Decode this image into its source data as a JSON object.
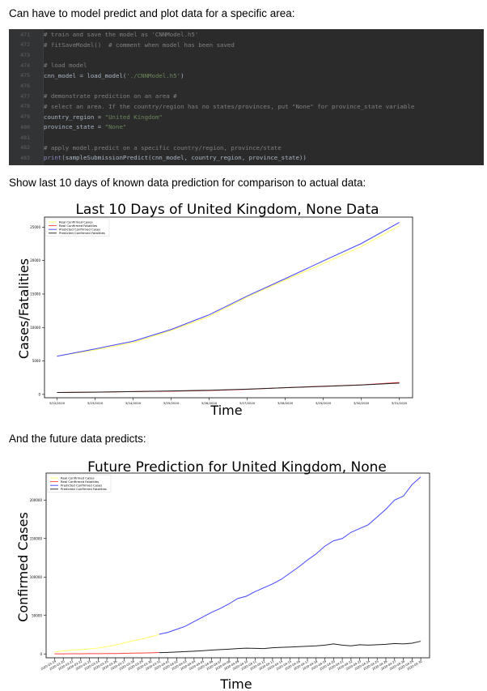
{
  "paragraphs": {
    "intro": "Can have to model predict and plot data for a specific area:",
    "last10": "Show last 10 days of known data prediction for comparison to actual data:",
    "future": "And the future data predicts:"
  },
  "code": {
    "lines": [
      {
        "num": "471",
        "parts": [
          {
            "t": "# train and save the model as 'CNNModel.h5'",
            "c": "cmt"
          }
        ]
      },
      {
        "num": "472",
        "parts": [
          {
            "t": "# fitSaveModel()  # comment when model has been saved",
            "c": "cmt"
          }
        ]
      },
      {
        "num": "473",
        "parts": []
      },
      {
        "num": "474",
        "parts": [
          {
            "t": "# load model",
            "c": "cmt"
          }
        ]
      },
      {
        "num": "475",
        "parts": [
          {
            "t": "cnn_model = load_model(",
            "c": ""
          },
          {
            "t": "'./CNNModel.h5'",
            "c": "str"
          },
          {
            "t": ")",
            "c": ""
          }
        ]
      },
      {
        "num": "476",
        "parts": []
      },
      {
        "num": "477",
        "parts": [
          {
            "t": "# demonstrate prediction on an area #",
            "c": "cmt"
          }
        ]
      },
      {
        "num": "478",
        "parts": [
          {
            "t": "# select an area. If the country/region has no states/provinces, put \"None\" for province_state variable",
            "c": "cmt"
          }
        ]
      },
      {
        "num": "479",
        "parts": [
          {
            "t": "country_region = ",
            "c": ""
          },
          {
            "t": "\"United Kingdom\"",
            "c": "str"
          }
        ]
      },
      {
        "num": "480",
        "parts": [
          {
            "t": "province_state = ",
            "c": ""
          },
          {
            "t": "\"None\"",
            "c": "str"
          }
        ]
      },
      {
        "num": "481",
        "parts": []
      },
      {
        "num": "482",
        "parts": [
          {
            "t": "# apply model.predict on a specific country/region, province/state",
            "c": "cmt"
          }
        ]
      },
      {
        "num": "483",
        "parts": [
          {
            "t": "print",
            "c": "fn"
          },
          {
            "t": "(sampleSubmissionPredict(cnn_model, country_region, province_state))",
            "c": ""
          }
        ]
      }
    ]
  },
  "chart_data": [
    {
      "type": "line",
      "title": "Last 10 Days of United Kingdom, None Data",
      "xlabel": "Time",
      "ylabel": "Cases/Fatalities",
      "categories": [
        "3/22/2020",
        "3/23/2020",
        "3/24/2020",
        "3/25/2020",
        "3/26/2020",
        "3/27/2020",
        "3/28/2020",
        "3/29/2020",
        "3/30/2020",
        "3/31/2020"
      ],
      "ylim": [
        -500,
        26500
      ],
      "yticks": [
        0,
        5000,
        10000,
        15000,
        20000,
        25000
      ],
      "legend": "upper-left",
      "series": [
        {
          "name": "Real Confirmed Cases",
          "color": "#ffff66",
          "values": [
            5700,
            6650,
            7750,
            9550,
            11650,
            14550,
            17100,
            19550,
            22100,
            25200
          ]
        },
        {
          "name": "Real Confirmed Fatalities",
          "color": "#ff4040",
          "values": [
            280,
            340,
            430,
            470,
            580,
            760,
            1020,
            1230,
            1420,
            1790
          ]
        },
        {
          "name": "Predicted Confirmed Cases",
          "color": "#4444ff",
          "values": [
            5700,
            6800,
            7950,
            9700,
            11900,
            14700,
            17300,
            19950,
            22550,
            25700
          ]
        },
        {
          "name": "Predicted Confirmed Fatalities",
          "color": "#202020",
          "values": [
            280,
            330,
            420,
            520,
            620,
            780,
            1000,
            1200,
            1400,
            1700
          ]
        }
      ]
    },
    {
      "type": "line",
      "title": "Future Prediction for United Kingdom, None",
      "xlabel": "Time",
      "ylabel": "Confirmed Cases",
      "categories": [
        "2020-03-19",
        "2020-03-20",
        "2020-03-21",
        "2020-03-22",
        "2020-03-23",
        "2020-03-24",
        "2020-03-25",
        "2020-03-26",
        "2020-03-27",
        "2020-03-28",
        "2020-03-29",
        "2020-03-30",
        "2020-03-31",
        "2020-04-01",
        "2020-04-02",
        "2020-04-03",
        "2020-04-04",
        "2020-04-05",
        "2020-04-06",
        "2020-04-07",
        "2020-04-08",
        "2020-04-09",
        "2020-04-10",
        "2020-04-11",
        "2020-04-12",
        "2020-04-13",
        "2020-04-14",
        "2020-04-15",
        "2020-04-16",
        "2020-04-17",
        "2020-04-18",
        "2020-04-19",
        "2020-04-20",
        "2020-04-21",
        "2020-04-22",
        "2020-04-23",
        "2020-04-24",
        "2020-04-25",
        "2020-04-26",
        "2020-04-27",
        "2020-04-28",
        "2020-04-29",
        "2020-04-30"
      ],
      "ylim": [
        -5000,
        235000
      ],
      "yticks": [
        0,
        50000,
        100000,
        150000,
        200000
      ],
      "legend": "upper-left",
      "series": [
        {
          "name": "Real Confirmed Cases",
          "color": "#ffff66",
          "values": [
            2700,
            3900,
            5000,
            5700,
            6600,
            7700,
            9500,
            11600,
            14500,
            17000,
            19500,
            22100,
            25200,
            null,
            null,
            null,
            null,
            null,
            null,
            null,
            null,
            null,
            null,
            null,
            null,
            null,
            null,
            null,
            null,
            null,
            null,
            null,
            null,
            null,
            null,
            null,
            null,
            null,
            null,
            null,
            null,
            null,
            null
          ]
        },
        {
          "name": "Real Confirmed Fatalities",
          "color": "#ff4040",
          "values": [
            140,
            180,
            230,
            280,
            340,
            430,
            470,
            580,
            760,
            1020,
            1230,
            1420,
            1790,
            null,
            null,
            null,
            null,
            null,
            null,
            null,
            null,
            null,
            null,
            null,
            null,
            null,
            null,
            null,
            null,
            null,
            null,
            null,
            null,
            null,
            null,
            null,
            null,
            null,
            null,
            null,
            null,
            null,
            null
          ]
        },
        {
          "name": "Predicted Confirmed Cases",
          "color": "#4444ff",
          "values": [
            null,
            null,
            null,
            null,
            null,
            null,
            null,
            null,
            null,
            null,
            null,
            null,
            25700,
            28000,
            32000,
            36000,
            42000,
            48000,
            54000,
            59000,
            65000,
            72000,
            75000,
            81000,
            86000,
            91000,
            97000,
            105000,
            113000,
            122000,
            130000,
            140000,
            147000,
            150000,
            158000,
            163000,
            168000,
            178000,
            188000,
            200000,
            205000,
            220000,
            230000
          ]
        },
        {
          "name": "Predicted Confirmed Fatalities",
          "color": "#202020",
          "values": [
            null,
            null,
            null,
            null,
            null,
            null,
            null,
            null,
            null,
            null,
            null,
            null,
            1700,
            2000,
            2500,
            3000,
            3500,
            4200,
            5000,
            5600,
            6200,
            7000,
            7500,
            7200,
            7000,
            8000,
            8500,
            9000,
            9500,
            10000,
            10500,
            11500,
            13000,
            11500,
            10500,
            12000,
            11500,
            12000,
            12500,
            13500,
            13000,
            14000,
            16500
          ]
        }
      ]
    }
  ]
}
